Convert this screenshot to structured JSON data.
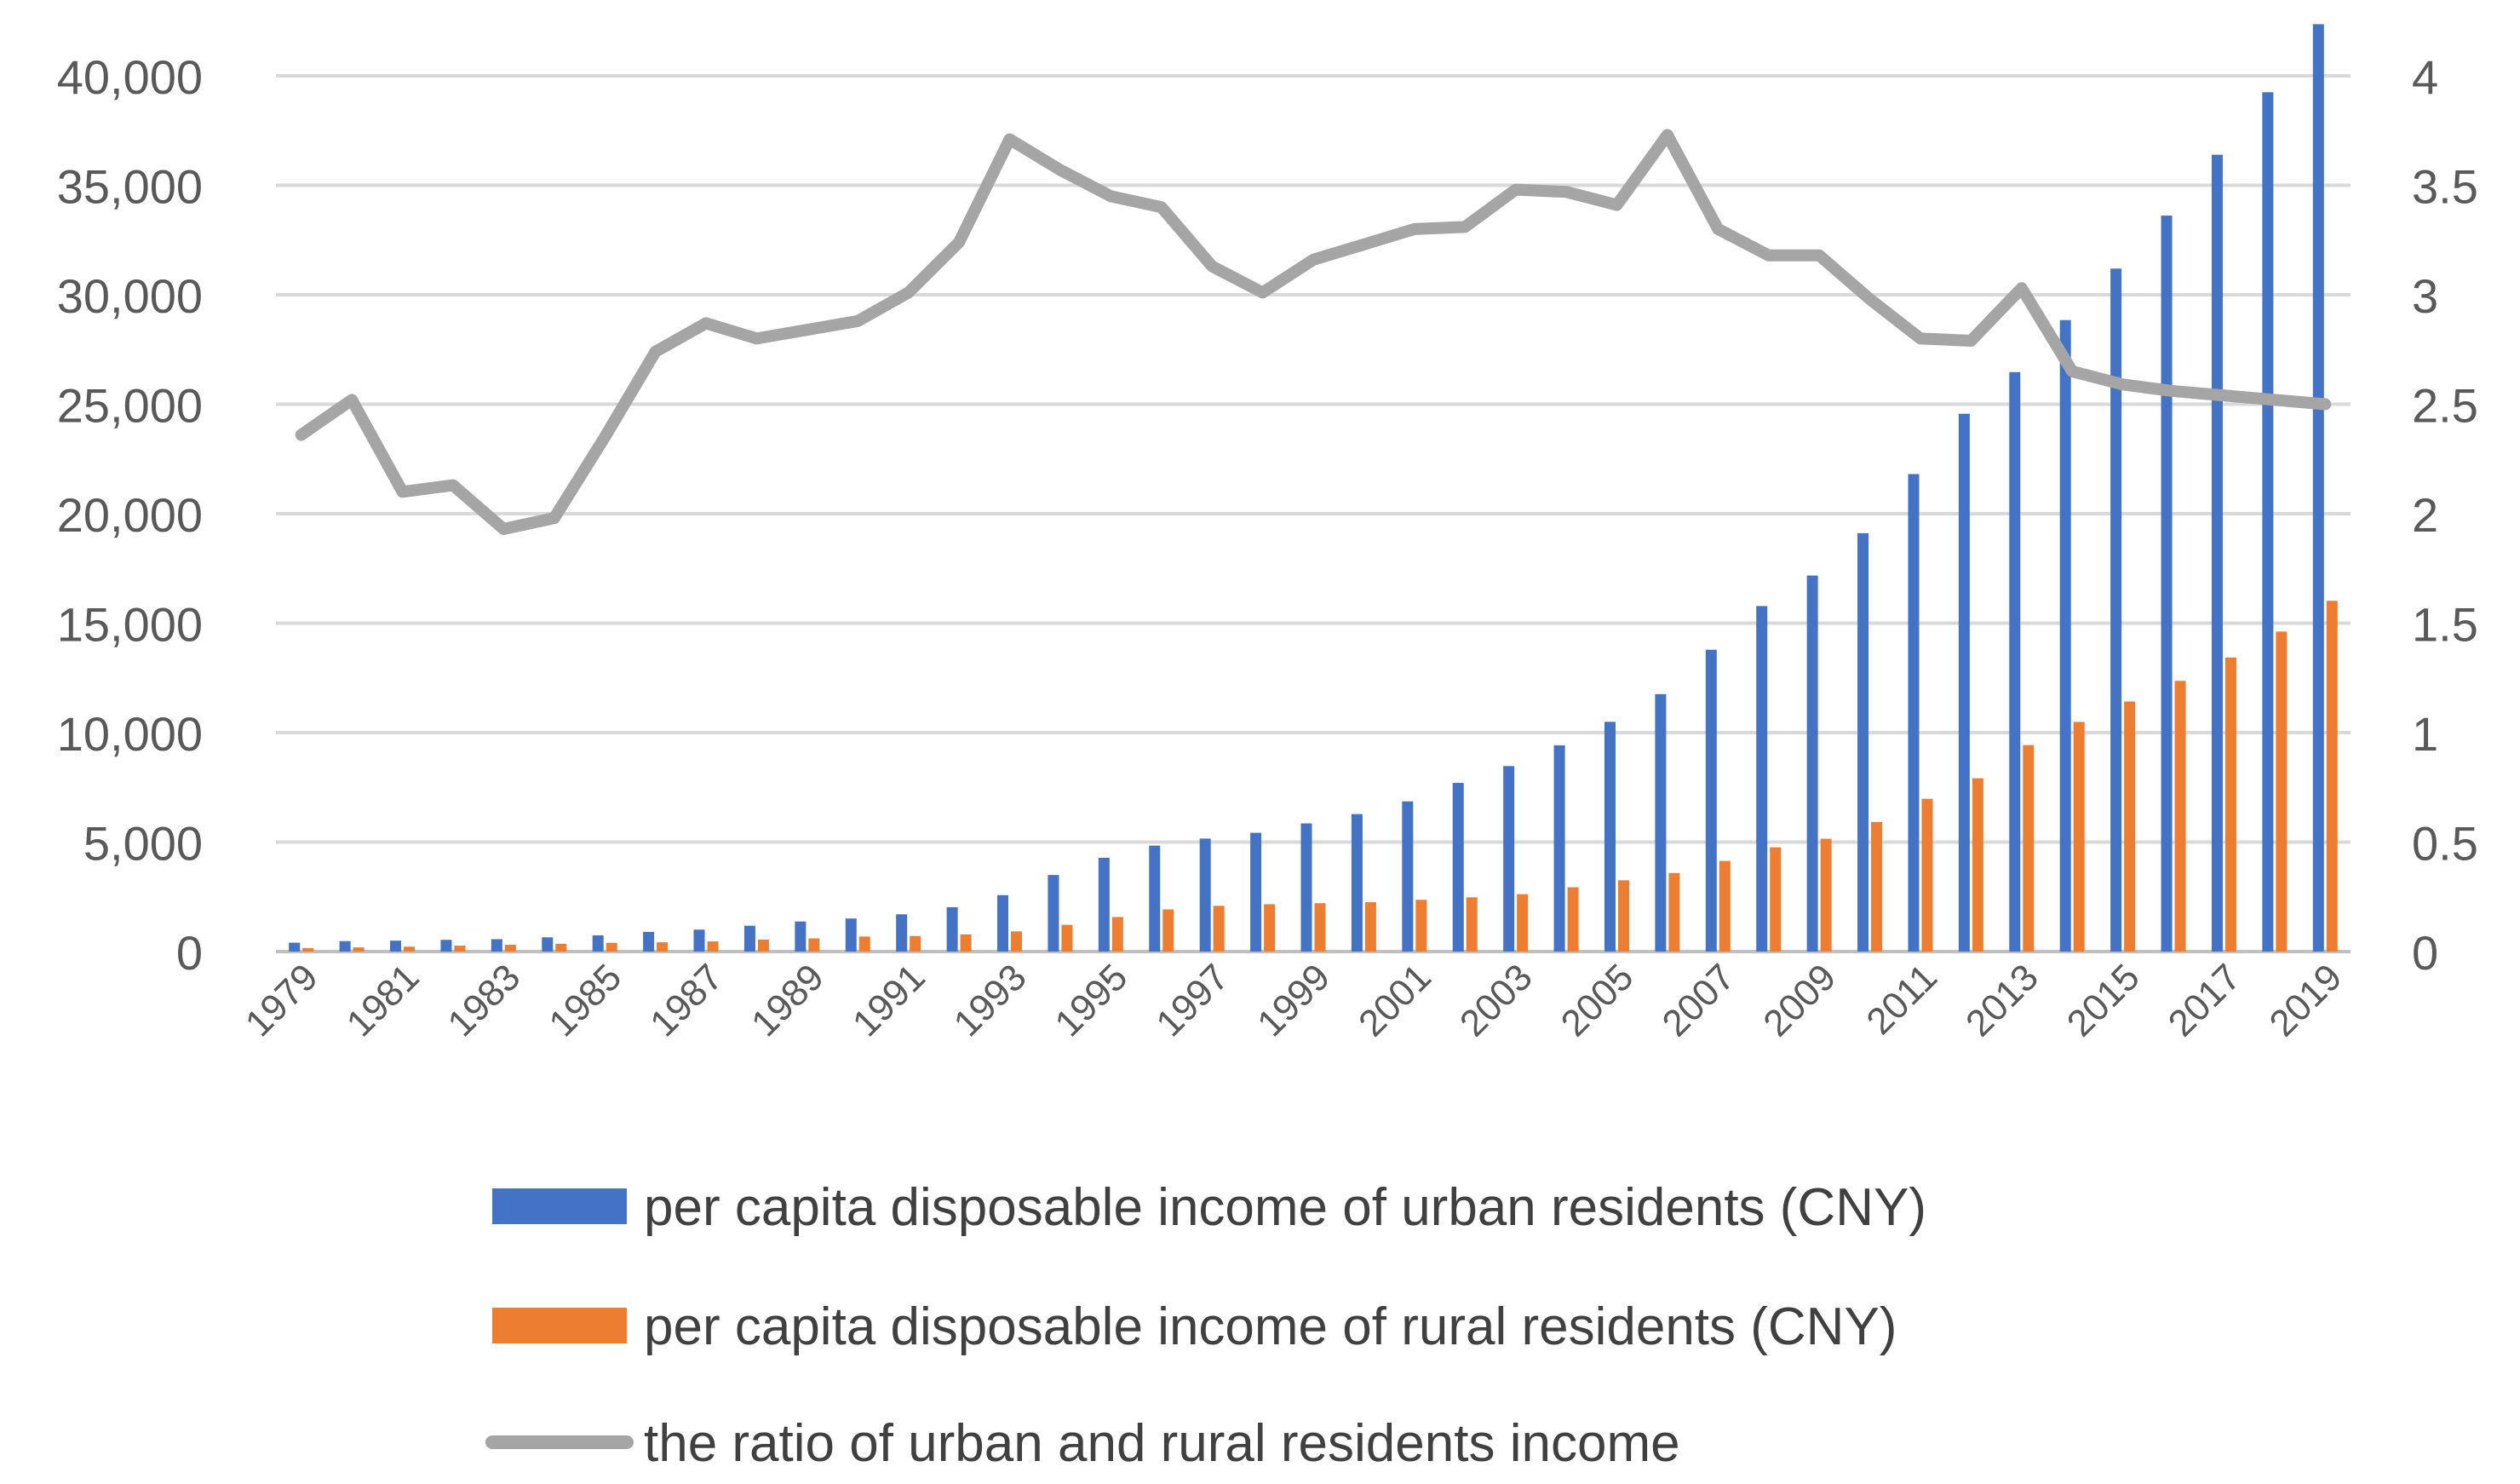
{
  "chart_data": {
    "type": "bar+line",
    "title": "",
    "xlabel": "",
    "ylabel": "",
    "y2label": "",
    "categories": [
      "1979",
      "1980",
      "1981",
      "1982",
      "1983",
      "1984",
      "1985",
      "1986",
      "1987",
      "1988",
      "1989",
      "1990",
      "1991",
      "1992",
      "1993",
      "1994",
      "1995",
      "1996",
      "1997",
      "1998",
      "1999",
      "2000",
      "2001",
      "2002",
      "2003",
      "2004",
      "2005",
      "2006",
      "2007",
      "2008",
      "2009",
      "2010",
      "2011",
      "2012",
      "2013",
      "2014",
      "2015",
      "2016",
      "2017",
      "2018",
      "2019"
    ],
    "x_tick_labels": [
      "1979",
      "1981",
      "1983",
      "1985",
      "1987",
      "1989",
      "1991",
      "1993",
      "1995",
      "1997",
      "1999",
      "2001",
      "2003",
      "2005",
      "2007",
      "2009",
      "2011",
      "2013",
      "2015",
      "2017",
      "2019"
    ],
    "ylim": [
      0,
      40000
    ],
    "y_ticks": [
      "0",
      "5,000",
      "10,000",
      "15,000",
      "20,000",
      "25,000",
      "30,000",
      "35,000",
      "40,000"
    ],
    "y2lim": [
      0,
      4
    ],
    "y2_ticks": [
      "0",
      "0.5",
      "1",
      "1.5",
      "2",
      "2.5",
      "3",
      "3.5",
      "4"
    ],
    "grid": true,
    "legend_position": "bottom",
    "series": [
      {
        "name": "per capita disposable income of urban residents (CNY)",
        "type": "bar",
        "axis": "left",
        "color": "#4472C4",
        "values": [
          405,
          478,
          500,
          535,
          565,
          651,
          739,
          900,
          1002,
          1180,
          1374,
          1510,
          1701,
          2027,
          2577,
          3496,
          4283,
          4839,
          5160,
          5425,
          5854,
          6280,
          6860,
          7703,
          8472,
          9422,
          10493,
          11759,
          13786,
          15781,
          17175,
          19109,
          21810,
          24565,
          26467,
          28844,
          31195,
          33616,
          36396,
          39251,
          42359
        ]
      },
      {
        "name": "per capita disposable income of rural residents (CNY)",
        "type": "bar",
        "axis": "left",
        "color": "#ED7D31",
        "values": [
          160,
          191,
          223,
          270,
          310,
          355,
          398,
          424,
          463,
          545,
          602,
          686,
          709,
          784,
          922,
          1221,
          1578,
          1926,
          2090,
          2162,
          2210,
          2253,
          2366,
          2476,
          2622,
          2936,
          3255,
          3587,
          4140,
          4761,
          5153,
          5919,
          6977,
          7917,
          9430,
          10489,
          11422,
          12363,
          13432,
          14617,
          16021
        ]
      },
      {
        "name": "the ratio of urban and rural residents income",
        "type": "line",
        "axis": "right",
        "color": "#A5A5A5",
        "values": [
          2.36,
          2.52,
          2.1,
          2.13,
          1.93,
          1.98,
          2.35,
          2.74,
          2.87,
          2.8,
          2.84,
          2.88,
          3.01,
          3.24,
          3.71,
          3.57,
          3.45,
          3.4,
          3.13,
          3.01,
          3.16,
          3.23,
          3.3,
          3.31,
          3.48,
          3.47,
          3.41,
          3.73,
          3.3,
          3.18,
          3.18,
          2.98,
          2.8,
          2.79,
          3.03,
          2.65,
          2.59,
          2.56,
          2.54,
          2.52,
          2.5
        ]
      }
    ]
  }
}
